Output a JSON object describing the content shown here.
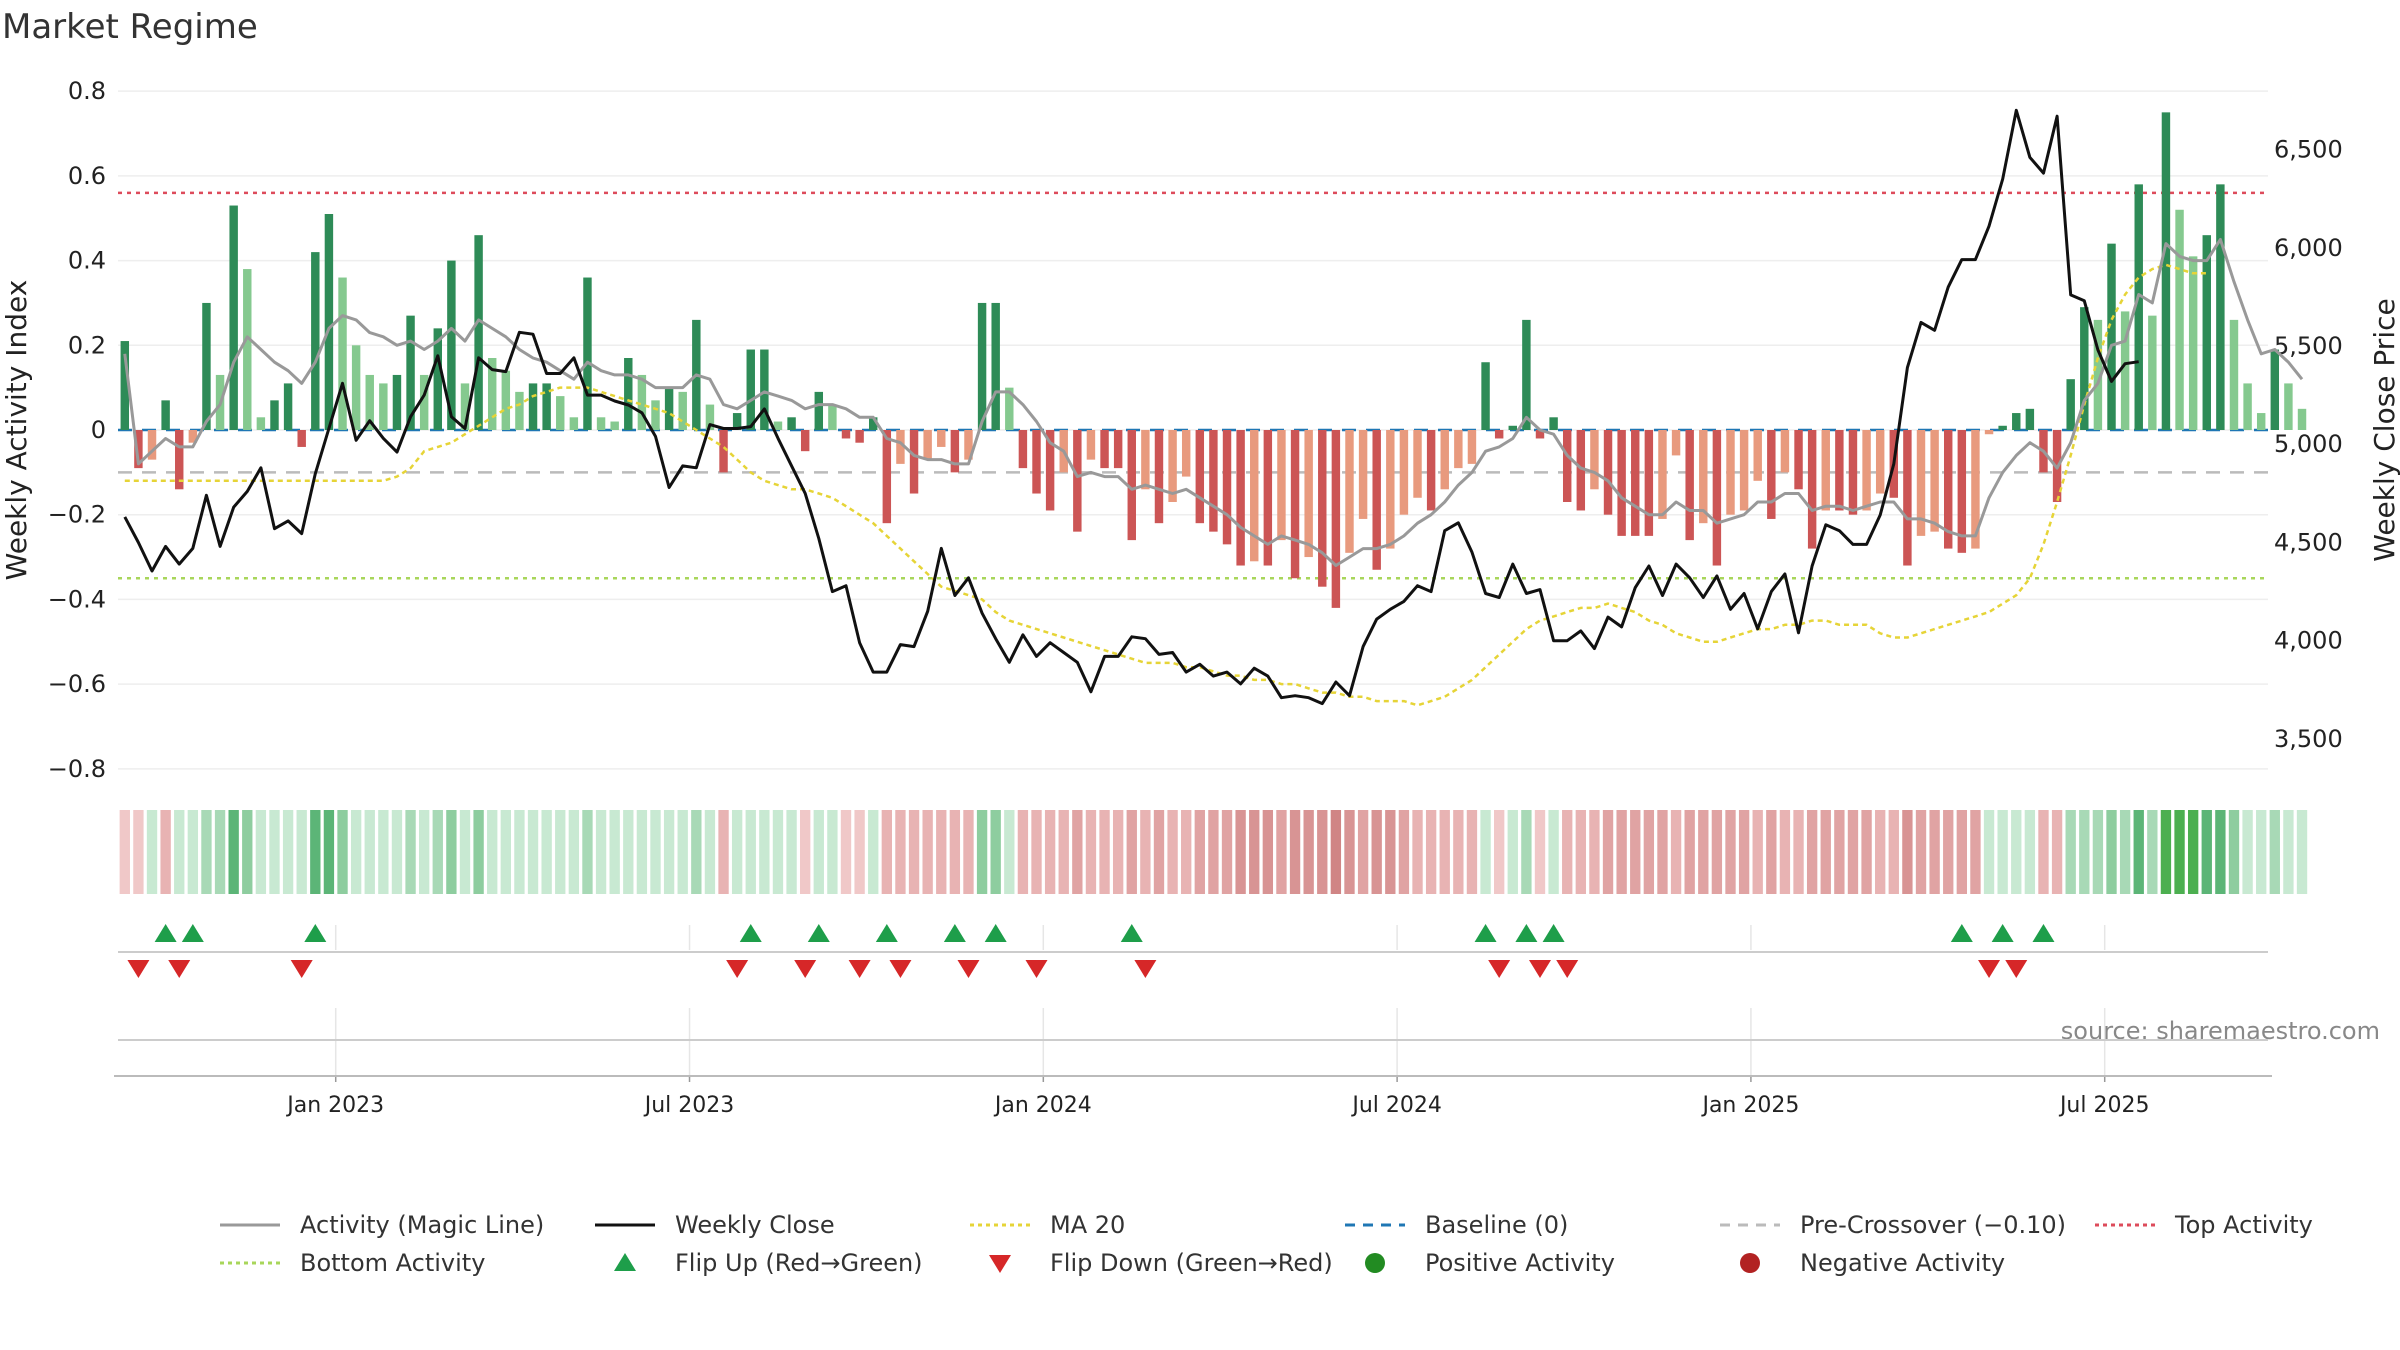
{
  "chart_data": {
    "type": "bar",
    "title": "Market Regime",
    "ylabel_left": "Weekly Activity Index",
    "ylabel_right": "Weekly Close Price",
    "source": "source: sharemaestro.com",
    "y_left_range": [
      -0.85,
      0.85
    ],
    "y_left_ticks": [
      {
        "v": 0.8,
        "label": "0.8"
      },
      {
        "v": 0.6,
        "label": "0.6"
      },
      {
        "v": 0.4,
        "label": "0.4"
      },
      {
        "v": 0.2,
        "label": "0.2"
      },
      {
        "v": 0,
        "label": "0"
      },
      {
        "v": -0.2,
        "label": "−0.2"
      },
      {
        "v": -0.4,
        "label": "−0.4"
      },
      {
        "v": -0.6,
        "label": "−0.6"
      },
      {
        "v": -0.8,
        "label": "−0.8"
      }
    ],
    "y_right_range": [
      3240,
      6905
    ],
    "y_right_ticks": [
      {
        "v": 3500,
        "label": "3,500"
      },
      {
        "v": 4000,
        "label": "4,000"
      },
      {
        "v": 4500,
        "label": "4,500"
      },
      {
        "v": 5000,
        "label": "5,000"
      },
      {
        "v": 5500,
        "label": "5,500"
      },
      {
        "v": 6000,
        "label": "6,000"
      },
      {
        "v": 6500,
        "label": "6,500"
      }
    ],
    "x_ticks": [
      {
        "w": 16,
        "label": "Jan 2023"
      },
      {
        "w": 42,
        "label": "Jul 2023"
      },
      {
        "w": 68,
        "label": "Jan 2024"
      },
      {
        "w": 94,
        "label": "Jul 2024"
      },
      {
        "w": 120,
        "label": "Jan 2025"
      },
      {
        "w": 146,
        "label": "Jul 2025"
      }
    ],
    "weeks": 158,
    "top_activity": 0.56,
    "bottom_activity": -0.35,
    "pre_crossover": -0.1,
    "baseline": 0,
    "activity": [
      0.21,
      -0.09,
      -0.07,
      0.07,
      -0.14,
      -0.03,
      0.3,
      0.13,
      0.53,
      0.38,
      0.03,
      0.07,
      0.11,
      -0.04,
      0.42,
      0.51,
      0.36,
      0.2,
      0.13,
      0.11,
      0.13,
      0.27,
      0.13,
      0.24,
      0.4,
      0.11,
      0.46,
      0.17,
      0.14,
      0.09,
      0.11,
      0.11,
      0.08,
      0.03,
      0.36,
      0.03,
      0.02,
      0.17,
      0.13,
      0.07,
      0.1,
      0.09,
      0.26,
      0.06,
      -0.1,
      0.04,
      0.19,
      0.19,
      0.02,
      0.03,
      -0.05,
      0.09,
      0.06,
      -0.02,
      -0.03,
      0.03,
      -0.22,
      -0.08,
      -0.15,
      -0.07,
      -0.04,
      -0.1,
      -0.07,
      0.3,
      0.3,
      0.1,
      -0.09,
      -0.15,
      -0.19,
      -0.1,
      -0.24,
      -0.07,
      -0.09,
      -0.09,
      -0.26,
      -0.14,
      -0.22,
      -0.17,
      -0.11,
      -0.22,
      -0.24,
      -0.27,
      -0.32,
      -0.31,
      -0.32,
      -0.26,
      -0.35,
      -0.3,
      -0.37,
      -0.42,
      -0.29,
      -0.21,
      -0.33,
      -0.28,
      -0.2,
      -0.16,
      -0.19,
      -0.14,
      -0.09,
      -0.08,
      0.16,
      -0.02,
      0.01,
      0.26,
      -0.02,
      0.03,
      -0.17,
      -0.19,
      -0.14,
      -0.2,
      -0.25,
      -0.25,
      -0.25,
      -0.21,
      -0.06,
      -0.26,
      -0.22,
      -0.32,
      -0.2,
      -0.19,
      -0.12,
      -0.21,
      -0.1,
      -0.14,
      -0.28,
      -0.19,
      -0.19,
      -0.2,
      -0.19,
      -0.15,
      -0.16,
      -0.32,
      -0.25,
      -0.24,
      -0.28,
      -0.29,
      -0.28,
      -0.01,
      0.01,
      0.04,
      0.05,
      -0.1,
      -0.17,
      0.12,
      0.29,
      0.26,
      0.44,
      0.28,
      0.58,
      0.27,
      0.75,
      0.52,
      0.41,
      0.46,
      0.58,
      0.26,
      0.11,
      0.04,
      0.19,
      0.11,
      0.05
    ],
    "magic_line": [
      0.18,
      -0.08,
      -0.05,
      -0.02,
      -0.04,
      -0.04,
      0.02,
      0.06,
      0.16,
      0.22,
      0.19,
      0.16,
      0.14,
      0.11,
      0.16,
      0.24,
      0.27,
      0.26,
      0.23,
      0.22,
      0.2,
      0.21,
      0.19,
      0.21,
      0.24,
      0.21,
      0.26,
      0.24,
      0.22,
      0.19,
      0.17,
      0.16,
      0.14,
      0.12,
      0.16,
      0.14,
      0.13,
      0.13,
      0.12,
      0.1,
      0.1,
      0.1,
      0.13,
      0.12,
      0.06,
      0.05,
      0.07,
      0.09,
      0.08,
      0.07,
      0.05,
      0.06,
      0.06,
      0.05,
      0.03,
      0.03,
      -0.02,
      -0.03,
      -0.06,
      -0.07,
      -0.07,
      -0.08,
      -0.08,
      0.02,
      0.09,
      0.09,
      0.06,
      0.02,
      -0.03,
      -0.05,
      -0.11,
      -0.1,
      -0.11,
      -0.11,
      -0.14,
      -0.13,
      -0.14,
      -0.15,
      -0.14,
      -0.16,
      -0.18,
      -0.2,
      -0.23,
      -0.25,
      -0.27,
      -0.25,
      -0.26,
      -0.27,
      -0.29,
      -0.32,
      -0.3,
      -0.28,
      -0.28,
      -0.27,
      -0.25,
      -0.22,
      -0.2,
      -0.17,
      -0.13,
      -0.1,
      -0.05,
      -0.04,
      -0.02,
      0.03,
      0.0,
      -0.01,
      -0.06,
      -0.09,
      -0.1,
      -0.12,
      -0.16,
      -0.18,
      -0.2,
      -0.2,
      -0.17,
      -0.19,
      -0.19,
      -0.22,
      -0.21,
      -0.2,
      -0.17,
      -0.17,
      -0.15,
      -0.15,
      -0.19,
      -0.18,
      -0.18,
      -0.19,
      -0.18,
      -0.17,
      -0.17,
      -0.21,
      -0.21,
      -0.22,
      -0.24,
      -0.25,
      -0.25,
      -0.16,
      -0.1,
      -0.06,
      -0.03,
      -0.05,
      -0.09,
      -0.03,
      0.07,
      0.11,
      0.2,
      0.21,
      0.32,
      0.3,
      0.44,
      0.41,
      0.4,
      0.4,
      0.45,
      0.35,
      0.26,
      0.18,
      0.19,
      0.16,
      0.12
    ],
    "ma20": [
      -0.12,
      -0.12,
      -0.12,
      -0.12,
      -0.12,
      -0.12,
      -0.12,
      -0.12,
      -0.12,
      -0.12,
      -0.12,
      -0.12,
      -0.12,
      -0.12,
      -0.12,
      -0.12,
      -0.12,
      -0.12,
      -0.12,
      -0.12,
      -0.11,
      -0.09,
      -0.05,
      -0.04,
      -0.03,
      -0.01,
      0.01,
      0.03,
      0.05,
      0.06,
      0.08,
      0.09,
      0.1,
      0.1,
      0.1,
      0.09,
      0.08,
      0.07,
      0.06,
      0.05,
      0.04,
      0.02,
      0.0,
      -0.02,
      -0.04,
      -0.07,
      -0.1,
      -0.12,
      -0.13,
      -0.14,
      -0.14,
      -0.15,
      -0.16,
      -0.18,
      -0.2,
      -0.22,
      -0.25,
      -0.28,
      -0.31,
      -0.34,
      -0.37,
      -0.38,
      -0.39,
      -0.4,
      -0.43,
      -0.45,
      -0.46,
      -0.47,
      -0.48,
      -0.49,
      -0.5,
      -0.51,
      -0.52,
      -0.53,
      -0.54,
      -0.55,
      -0.55,
      -0.55,
      -0.56,
      -0.56,
      -0.57,
      -0.58,
      -0.58,
      -0.59,
      -0.59,
      -0.6,
      -0.6,
      -0.61,
      -0.62,
      -0.62,
      -0.63,
      -0.63,
      -0.64,
      -0.64,
      -0.64,
      -0.65,
      -0.64,
      -0.63,
      -0.61,
      -0.59,
      -0.56,
      -0.53,
      -0.5,
      -0.47,
      -0.45,
      -0.44,
      -0.43,
      -0.42,
      -0.42,
      -0.41,
      -0.42,
      -0.43,
      -0.45,
      -0.46,
      -0.48,
      -0.49,
      -0.5,
      -0.5,
      -0.49,
      -0.48,
      -0.47,
      -0.47,
      -0.46,
      -0.46,
      -0.45,
      -0.45,
      -0.46,
      -0.46,
      -0.46,
      -0.48,
      -0.49,
      -0.49,
      -0.48,
      -0.47,
      -0.46,
      -0.45,
      -0.44,
      -0.43,
      -0.41,
      -0.39,
      -0.35,
      -0.27,
      -0.17,
      -0.06,
      0.06,
      0.17,
      0.26,
      0.32,
      0.36,
      0.38,
      0.39,
      0.38,
      0.37,
      0.37
    ],
    "weekly_close": [
      4630,
      4500,
      4355,
      4480,
      4390,
      4470,
      4740,
      4480,
      4680,
      4760,
      4880,
      4570,
      4610,
      4545,
      4850,
      5080,
      5310,
      5020,
      5120,
      5030,
      4960,
      5140,
      5250,
      5450,
      5140,
      5080,
      5440,
      5380,
      5370,
      5570,
      5560,
      5360,
      5360,
      5440,
      5250,
      5250,
      5220,
      5200,
      5160,
      5040,
      4780,
      4890,
      4880,
      5100,
      5080,
      5080,
      5090,
      5180,
      5030,
      4890,
      4750,
      4520,
      4250,
      4280,
      3990,
      3840,
      3840,
      3980,
      3970,
      4150,
      4470,
      4230,
      4320,
      4140,
      4010,
      3890,
      4030,
      3920,
      3990,
      3940,
      3890,
      3740,
      3920,
      3920,
      4020,
      4010,
      3930,
      3940,
      3840,
      3880,
      3820,
      3840,
      3780,
      3860,
      3820,
      3710,
      3720,
      3710,
      3680,
      3790,
      3720,
      3970,
      4110,
      4160,
      4200,
      4280,
      4250,
      4560,
      4600,
      4450,
      4240,
      4220,
      4390,
      4240,
      4260,
      4000,
      4000,
      4050,
      3960,
      4120,
      4070,
      4270,
      4380,
      4230,
      4390,
      4320,
      4220,
      4330,
      4160,
      4240,
      4060,
      4250,
      4340,
      4040,
      4380,
      4590,
      4560,
      4490,
      4490,
      4640,
      4900,
      5390,
      5620,
      5580,
      5800,
      5940,
      5940,
      6110,
      6350,
      6700,
      6460,
      6380,
      6670,
      5760,
      5730,
      5480,
      5320,
      5410,
      5420
    ],
    "flip_up_weeks": [
      3,
      5,
      14,
      46,
      51,
      56,
      61,
      64,
      74,
      100,
      103,
      105,
      135,
      138,
      141
    ],
    "flip_down_weeks": [
      1,
      4,
      13,
      45,
      50,
      54,
      57,
      62,
      67,
      75,
      101,
      104,
      106,
      137,
      139
    ],
    "strip_colors": [
      "#f0c8c8",
      "#f0c8c8",
      "#c8e9d2",
      "#e8b3b3",
      "#c8e9d2",
      "#c8e9d2",
      "#a8d9b6",
      "#a8d9b6",
      "#5cb577",
      "#8ecd9f",
      "#c8e9d2",
      "#c8e9d2",
      "#c8e9d2",
      "#c8e9d2",
      "#5cb577",
      "#5cb577",
      "#8ecd9f",
      "#c8e9d2",
      "#c8e9d2",
      "#c8e9d2",
      "#c8e9d2",
      "#a8d9b6",
      "#c8e9d2",
      "#a8d9b6",
      "#8ecd9f",
      "#c8e9d2",
      "#8ecd9f",
      "#c8e9d2",
      "#c8e9d2",
      "#c8e9d2",
      "#c8e9d2",
      "#c8e9d2",
      "#c8e9d2",
      "#c8e9d2",
      "#a8d9b6",
      "#c8e9d2",
      "#c8e9d2",
      "#c8e9d2",
      "#c8e9d2",
      "#c8e9d2",
      "#c8e9d2",
      "#c8e9d2",
      "#a8d9b6",
      "#c8e9d2",
      "#e8b3b3",
      "#c8e9d2",
      "#c8e9d2",
      "#c8e9d2",
      "#c8e9d2",
      "#c8e9d2",
      "#f0c8c8",
      "#c8e9d2",
      "#c8e9d2",
      "#f0c8c8",
      "#f0c8c8",
      "#c8e9d2",
      "#e8b3b3",
      "#e8b3b3",
      "#e8b3b3",
      "#e8b3b3",
      "#e8b3b3",
      "#e8b3b3",
      "#e8b3b3",
      "#8ecd9f",
      "#8ecd9f",
      "#c8e9d2",
      "#e8b3b3",
      "#e8b3b3",
      "#e8b3b3",
      "#e8b3b3",
      "#e0a3a3",
      "#e8b3b3",
      "#e8b3b3",
      "#e8b3b3",
      "#e0a3a3",
      "#e8b3b3",
      "#e0a3a3",
      "#e8b3b3",
      "#e8b3b3",
      "#e0a3a3",
      "#e0a3a3",
      "#e0a3a3",
      "#d89494",
      "#d89494",
      "#d89494",
      "#e0a3a3",
      "#d89494",
      "#d89494",
      "#d89494",
      "#d08585",
      "#d89494",
      "#e0a3a3",
      "#d89494",
      "#d89494",
      "#e0a3a3",
      "#e8b3b3",
      "#e8b3b3",
      "#e8b3b3",
      "#e8b3b3",
      "#e8b3b3",
      "#c8e9d2",
      "#f0c8c8",
      "#c8e9d2",
      "#a8d9b6",
      "#f0c8c8",
      "#c8e9d2",
      "#e8b3b3",
      "#e8b3b3",
      "#e8b3b3",
      "#e0a3a3",
      "#e0a3a3",
      "#e0a3a3",
      "#e0a3a3",
      "#e0a3a3",
      "#e8b3b3",
      "#e0a3a3",
      "#e0a3a3",
      "#e0a3a3",
      "#e0a3a3",
      "#e0a3a3",
      "#e8b3b3",
      "#e0a3a3",
      "#e8b3b3",
      "#e8b3b3",
      "#e0a3a3",
      "#e0a3a3",
      "#e0a3a3",
      "#e0a3a3",
      "#e0a3a3",
      "#e8b3b3",
      "#e8b3b3",
      "#d89494",
      "#e0a3a3",
      "#e0a3a3",
      "#e0a3a3",
      "#e0a3a3",
      "#e0a3a3",
      "#c8e9d2",
      "#c8e9d2",
      "#c8e9d2",
      "#c8e9d2",
      "#e8b3b3",
      "#e8b3b3",
      "#a8d9b6",
      "#a8d9b6",
      "#a8d9b6",
      "#8ecd9f",
      "#a8d9b6",
      "#5cb577",
      "#a8d9b6",
      "#4caf50",
      "#4caf50",
      "#4caf50",
      "#5cb577",
      "#5cb577",
      "#8ecd9f",
      "#c8e9d2",
      "#c8e9d2",
      "#a8d9b6",
      "#c8e9d2",
      "#c8e9d2"
    ],
    "colors": {
      "pos_strong": "#2e8b57",
      "pos_weak": "#85c98f",
      "neg_strong": "#cc5555",
      "neg_weak": "#e89a7e",
      "magic": "#999999",
      "close": "#111111",
      "ma20": "#e6d437",
      "baseline": "#1f77b4",
      "pre_crossover": "#bbbbbb",
      "top_activity": "#dd4b5b",
      "bottom_activity": "#a8d65a",
      "flip_up": "#1e9e4a",
      "flip_down": "#d62728",
      "pos_dot": "#228b22",
      "neg_dot": "#b22222"
    },
    "legend": [
      {
        "label": "Activity (Magic Line)",
        "kind": "line",
        "color": "#999999",
        "dash": ""
      },
      {
        "label": "Weekly Close",
        "kind": "line",
        "color": "#111111",
        "dash": ""
      },
      {
        "label": "MA 20",
        "kind": "line",
        "color": "#e6d437",
        "dash": "4,4"
      },
      {
        "label": "Baseline (0)",
        "kind": "line",
        "color": "#1f77b4",
        "dash": "10,8"
      },
      {
        "label": "Pre-Crossover (−0.10)",
        "kind": "line",
        "color": "#bbbbbb",
        "dash": "10,8"
      },
      {
        "label": "Top Activity",
        "kind": "line",
        "color": "#dd4b5b",
        "dash": "4,4"
      },
      {
        "label": "Bottom Activity",
        "kind": "line",
        "color": "#a8d65a",
        "dash": "4,4"
      },
      {
        "label": "Flip Up (Red→Green)",
        "kind": "tri-up",
        "color": "#1e9e4a"
      },
      {
        "label": "Flip Down (Green→Red)",
        "kind": "tri-down",
        "color": "#d62728"
      },
      {
        "label": "Positive Activity",
        "kind": "dot",
        "color": "#228b22"
      },
      {
        "label": "Negative Activity",
        "kind": "dot",
        "color": "#b22222"
      }
    ]
  }
}
